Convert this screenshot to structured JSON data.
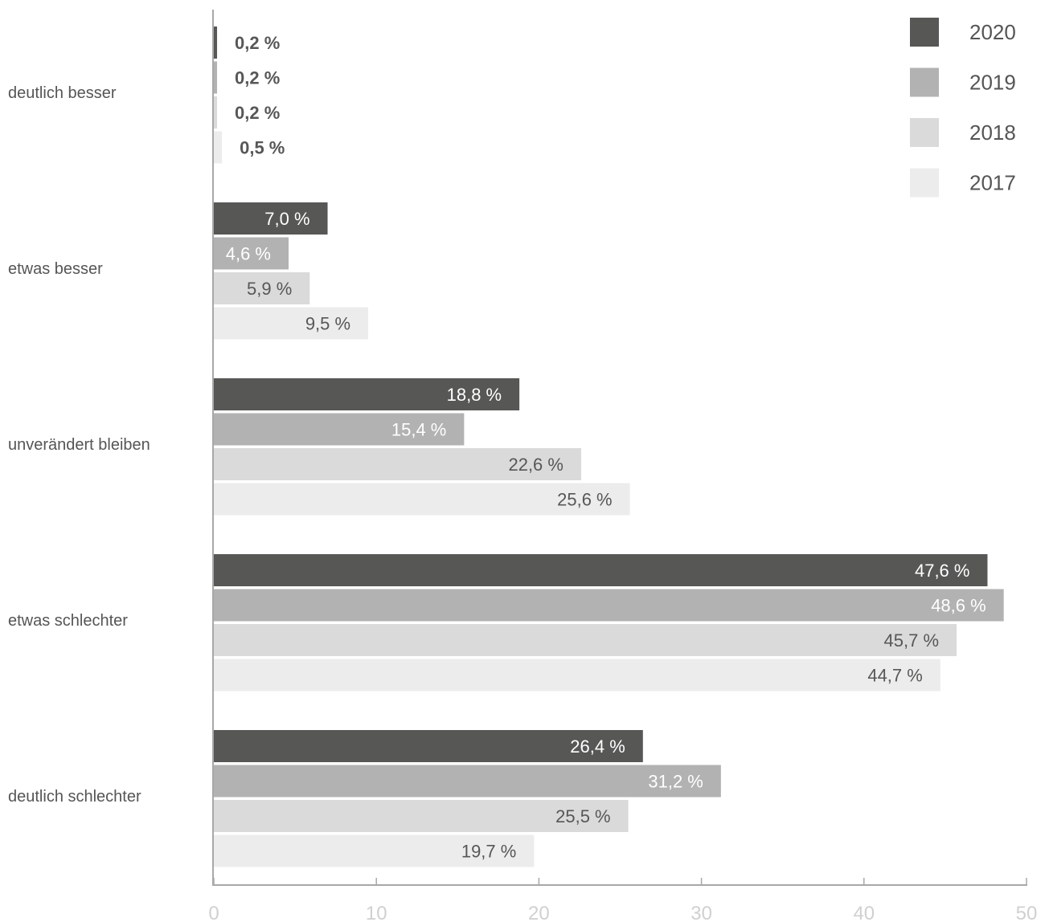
{
  "chart_data": {
    "type": "bar",
    "orientation": "horizontal",
    "categories": [
      "deutlich besser",
      "etwas besser",
      "unverändert bleiben",
      "etwas schlechter",
      "deutlich schlechter"
    ],
    "series": [
      {
        "name": "2020",
        "color": "#575756",
        "label_color": "#ffffff",
        "values": [
          0.2,
          7.0,
          18.8,
          47.6,
          26.4
        ],
        "labels": [
          "0,2 %",
          "7,0 %",
          "18,8 %",
          "47,6 %",
          "26,4 %"
        ]
      },
      {
        "name": "2019",
        "color": "#b2b2b2",
        "label_color": "#ffffff",
        "values": [
          0.2,
          4.6,
          15.4,
          48.6,
          31.2
        ],
        "labels": [
          "0,2 %",
          "4,6 %",
          "15,4 %",
          "48,6 %",
          "31,2 %"
        ]
      },
      {
        "name": "2018",
        "color": "#dadada",
        "label_color": "#575756",
        "values": [
          0.2,
          5.9,
          22.6,
          45.7,
          25.5
        ],
        "labels": [
          "0,2 %",
          "5,9 %",
          "22,6 %",
          "45,7 %",
          "25,5 %"
        ]
      },
      {
        "name": "2017",
        "color": "#ececec",
        "label_color": "#575756",
        "values": [
          0.5,
          9.5,
          25.6,
          44.7,
          19.7
        ],
        "labels": [
          "0,5 %",
          "9,5 %",
          "25,6 %",
          "44,7 %",
          "19,7 %"
        ]
      }
    ],
    "xlim": [
      0,
      50
    ],
    "xticks": [
      0,
      10,
      20,
      30,
      40,
      50
    ],
    "xtick_labels": [
      "0",
      "10",
      "20",
      "30",
      "40",
      "50"
    ],
    "grid": false,
    "legend_position": "top-right",
    "small_value_label_color": "#575756",
    "title": "",
    "xlabel": "",
    "ylabel": ""
  }
}
